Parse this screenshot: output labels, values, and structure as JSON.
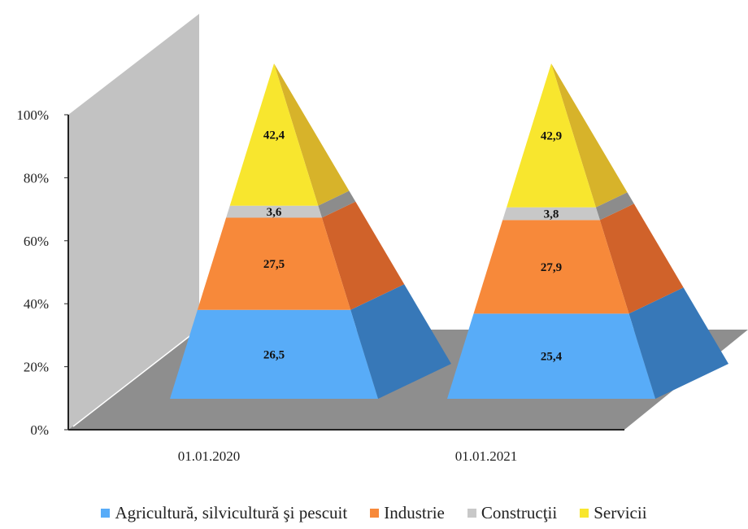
{
  "chart_data": {
    "type": "bar",
    "subtype": "stacked-100-pyramid-3d",
    "categories": [
      "01.01.2020",
      "01.01.2021"
    ],
    "y_ticks": [
      "0%",
      "20%",
      "40%",
      "60%",
      "80%",
      "100%"
    ],
    "ylim": [
      0,
      100
    ],
    "legend_position": "bottom",
    "series": [
      {
        "name": "Agricultură, silvicultură şi pescuit",
        "values": [
          26.5,
          25.4
        ],
        "labels": [
          "26,5",
          "25,4"
        ],
        "color": "#58ACF8",
        "side_color": "#3778B8"
      },
      {
        "name": "Industrie",
        "values": [
          27.5,
          27.9
        ],
        "labels": [
          "27,5",
          "27,9"
        ],
        "color": "#F7893A",
        "side_color": "#D0622A"
      },
      {
        "name": "Construcţii",
        "values": [
          3.6,
          3.8
        ],
        "labels": [
          "3,6",
          "3,8"
        ],
        "color": "#C8C8C8",
        "side_color": "#8C8C8C"
      },
      {
        "name": "Servicii",
        "values": [
          42.4,
          42.9
        ],
        "labels": [
          "42,4",
          "42,9"
        ],
        "color": "#F8E62E",
        "side_color": "#D7B32A"
      }
    ],
    "colors": {
      "wall": "#C2C2C2",
      "floor": "#8E8E8E",
      "axis": "#222222"
    }
  }
}
